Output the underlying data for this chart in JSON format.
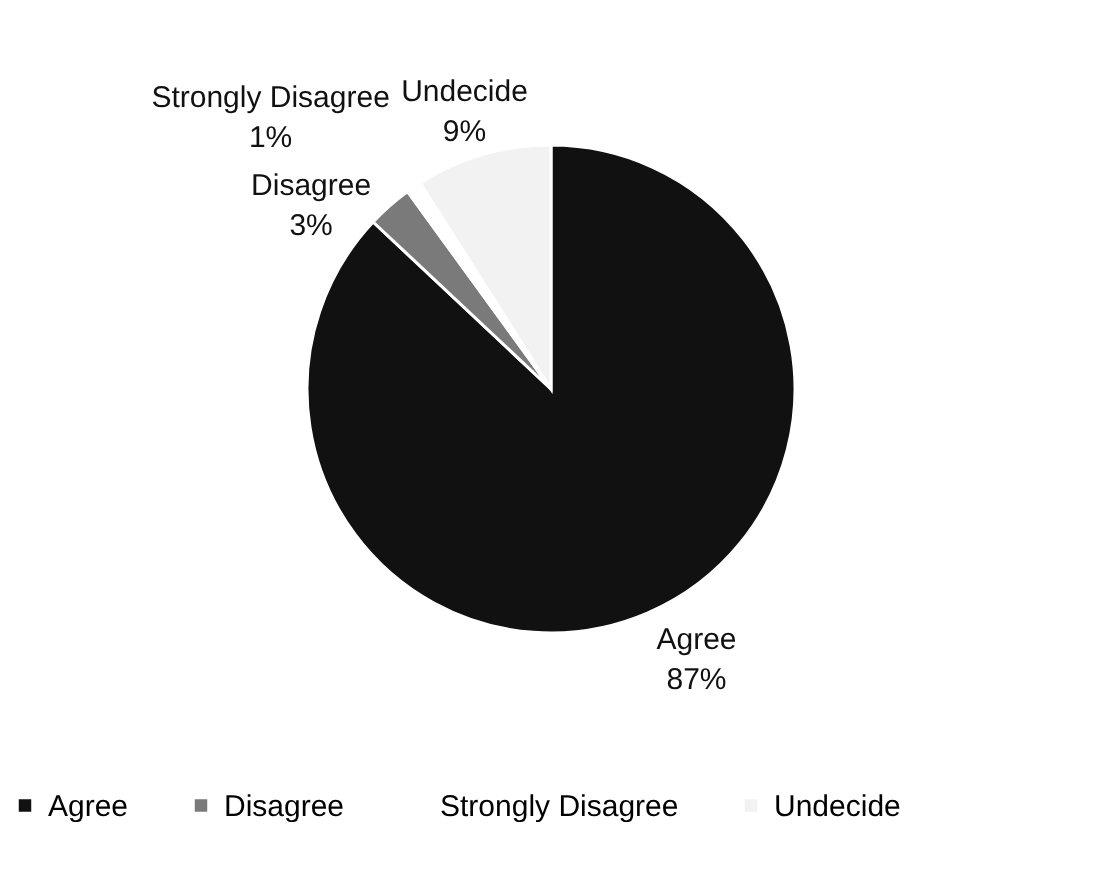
{
  "chart_data": {
    "type": "pie",
    "categories": [
      "Agree",
      "Disagree",
      "Strongly Disagree",
      "Undecide"
    ],
    "values": [
      87,
      3,
      1,
      9
    ],
    "value_labels": [
      "87%",
      "3%",
      "1%",
      "9%"
    ],
    "colors": [
      "#111111",
      "#7a7a7a",
      "#ffffff",
      "#f2f2f2"
    ],
    "legend": "bottom"
  }
}
